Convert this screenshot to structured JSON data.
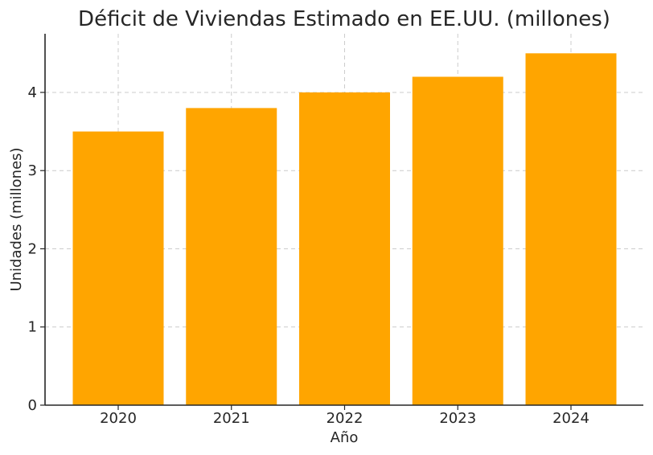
{
  "chart_data": {
    "type": "bar",
    "title": "Déficit de Viviendas Estimado en EE.UU. (millones)",
    "xlabel": "Año",
    "ylabel": "Unidades (millones)",
    "categories": [
      "2020",
      "2021",
      "2022",
      "2023",
      "2024"
    ],
    "values": [
      3.5,
      3.8,
      4.0,
      4.2,
      4.5
    ],
    "yticks": [
      0,
      1,
      2,
      3,
      4
    ],
    "ytick_labels": [
      "0",
      "1",
      "2",
      "3",
      "4"
    ],
    "ylim": [
      0,
      4.75
    ],
    "grid": true,
    "legend": false,
    "bar_color": "#FFA500"
  }
}
